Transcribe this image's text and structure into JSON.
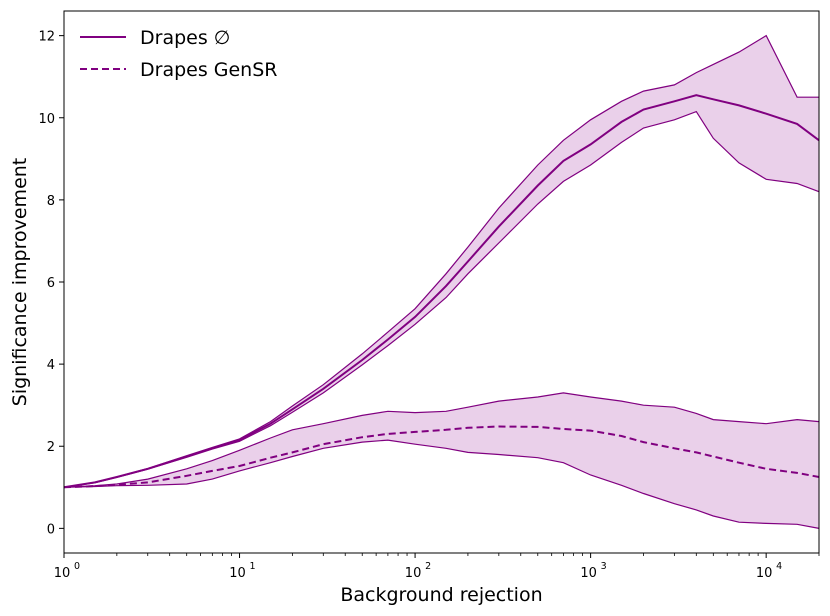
{
  "chart_data": {
    "type": "line",
    "title": "",
    "xlabel": "Background rejection",
    "ylabel": "Significance improvement",
    "xscale": "log",
    "xlim": [
      1,
      20000
    ],
    "ylim": [
      -0.6,
      12.6
    ],
    "grid": false,
    "legend_position": "top-left",
    "x_ticks": [
      {
        "value": 1,
        "base": "10",
        "exp": "0"
      },
      {
        "value": 10,
        "base": "10",
        "exp": "1"
      },
      {
        "value": 100,
        "base": "10",
        "exp": "2"
      },
      {
        "value": 1000,
        "base": "10",
        "exp": "3"
      },
      {
        "value": 10000,
        "base": "10",
        "exp": "4"
      }
    ],
    "y_ticks": [
      0,
      2,
      4,
      6,
      8,
      10,
      12
    ],
    "colors": {
      "series": "#800080",
      "band": "#e6c8e6",
      "band_edge": "#b061b0"
    },
    "series": [
      {
        "name": "Drapes ∅",
        "dash": "solid",
        "x": [
          1,
          1.5,
          2,
          3,
          5,
          7,
          10,
          15,
          20,
          30,
          50,
          70,
          100,
          150,
          200,
          300,
          500,
          700,
          1000,
          1500,
          2000,
          3000,
          4000,
          5000,
          7000,
          10000,
          15000,
          20000
        ],
        "mean": [
          1.0,
          1.12,
          1.25,
          1.45,
          1.75,
          1.95,
          2.15,
          2.55,
          2.9,
          3.4,
          4.1,
          4.6,
          5.15,
          5.9,
          6.5,
          7.35,
          8.35,
          8.95,
          9.35,
          9.9,
          10.2,
          10.4,
          10.55,
          10.45,
          10.3,
          10.1,
          9.85,
          9.45
        ],
        "upper": [
          1.0,
          1.12,
          1.25,
          1.46,
          1.77,
          1.97,
          2.18,
          2.6,
          2.98,
          3.5,
          4.25,
          4.78,
          5.35,
          6.2,
          6.85,
          7.8,
          8.85,
          9.45,
          9.95,
          10.4,
          10.65,
          10.8,
          11.1,
          11.3,
          11.6,
          12.0,
          10.5,
          10.5
        ],
        "lower": [
          1.0,
          1.11,
          1.24,
          1.44,
          1.73,
          1.93,
          2.12,
          2.5,
          2.83,
          3.3,
          3.98,
          4.45,
          4.97,
          5.62,
          6.2,
          6.95,
          7.9,
          8.45,
          8.85,
          9.4,
          9.75,
          9.95,
          10.15,
          9.5,
          8.9,
          8.5,
          8.4,
          8.2
        ]
      },
      {
        "name": "Drapes GenSR",
        "dash": "dashed",
        "x": [
          1,
          1.5,
          2,
          3,
          5,
          7,
          10,
          15,
          20,
          30,
          50,
          70,
          100,
          150,
          200,
          300,
          500,
          700,
          1000,
          1500,
          2000,
          3000,
          4000,
          5000,
          7000,
          10000,
          15000,
          20000
        ],
        "mean": [
          1.0,
          1.03,
          1.06,
          1.12,
          1.28,
          1.4,
          1.52,
          1.72,
          1.85,
          2.05,
          2.22,
          2.3,
          2.35,
          2.4,
          2.45,
          2.48,
          2.47,
          2.42,
          2.38,
          2.25,
          2.1,
          1.95,
          1.85,
          1.75,
          1.6,
          1.45,
          1.35,
          1.25
        ],
        "upper": [
          1.0,
          1.04,
          1.08,
          1.2,
          1.45,
          1.65,
          1.9,
          2.2,
          2.4,
          2.55,
          2.75,
          2.85,
          2.82,
          2.85,
          2.95,
          3.1,
          3.2,
          3.3,
          3.2,
          3.1,
          3.0,
          2.95,
          2.8,
          2.65,
          2.6,
          2.55,
          2.65,
          2.6
        ],
        "lower": [
          1.0,
          1.02,
          1.04,
          1.05,
          1.08,
          1.2,
          1.4,
          1.6,
          1.75,
          1.95,
          2.1,
          2.15,
          2.05,
          1.95,
          1.85,
          1.8,
          1.72,
          1.6,
          1.3,
          1.05,
          0.85,
          0.6,
          0.45,
          0.3,
          0.15,
          0.12,
          0.1,
          0.0
        ]
      }
    ]
  }
}
